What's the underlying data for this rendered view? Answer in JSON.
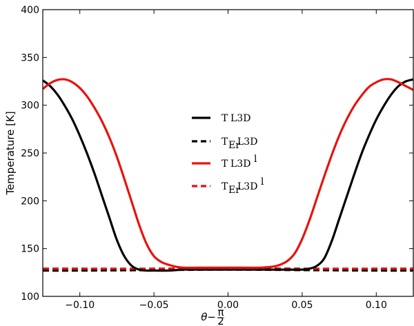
{
  "chart_data": {
    "type": "line",
    "title": "",
    "xlabel": "θ−π/2",
    "xlabel_parts": {
      "main": "θ−",
      "num": "π",
      "den": "2"
    },
    "ylabel": "Temperature [K]",
    "xlim": [
      -0.125,
      0.125
    ],
    "ylim": [
      100,
      400
    ],
    "xticks": [
      -0.1,
      -0.05,
      0.0,
      0.05,
      0.1
    ],
    "xtick_labels": [
      "−0.10",
      "−0.05",
      "0.00",
      "0.05",
      "0.10"
    ],
    "yticks": [
      100,
      150,
      200,
      250,
      300,
      350,
      400
    ],
    "ytick_labels": [
      "100",
      "150",
      "200",
      "250",
      "300",
      "350",
      "400"
    ],
    "grid": false,
    "legend_position": "center",
    "series": [
      {
        "name": "T L3D",
        "label_main": "T",
        "label_sub": "",
        "label_suffix": "L3D",
        "label_sup": "",
        "color": "#000000",
        "style": "solid",
        "x": [
          -0.125,
          -0.12,
          -0.115,
          -0.11,
          -0.105,
          -0.1,
          -0.095,
          -0.09,
          -0.085,
          -0.08,
          -0.075,
          -0.07,
          -0.065,
          -0.06,
          -0.055,
          -0.05,
          -0.04,
          -0.03,
          -0.02,
          0.0,
          0.02,
          0.03,
          0.04,
          0.05,
          0.055,
          0.06,
          0.065,
          0.07,
          0.075,
          0.08,
          0.085,
          0.09,
          0.095,
          0.1,
          0.105,
          0.11,
          0.115,
          0.12,
          0.125
        ],
        "y": [
          326,
          320,
          311,
          299,
          285,
          268,
          249,
          228,
          205,
          182,
          159,
          142,
          132,
          128,
          127,
          127,
          127,
          128,
          128,
          128,
          128,
          128,
          128,
          128,
          129,
          132,
          140,
          158,
          181,
          204,
          227,
          249,
          268,
          285,
          299,
          311,
          320,
          325,
          327
        ]
      },
      {
        "name": "T_Er L3D",
        "label_main": "T",
        "label_sub": "Er",
        "label_suffix": "L3D",
        "label_sup": "",
        "color": "#000000",
        "style": "dashed",
        "x": [
          -0.125,
          -0.1,
          -0.05,
          0.0,
          0.05,
          0.1,
          0.125
        ],
        "y": [
          127,
          127,
          127.5,
          128,
          127.5,
          127,
          127
        ]
      },
      {
        "name": "T L3D^l",
        "label_main": "T",
        "label_sub": "",
        "label_suffix": "L3D",
        "label_sup": "l",
        "color": "#e8120c",
        "style": "solid",
        "x": [
          -0.125,
          -0.12,
          -0.115,
          -0.11,
          -0.105,
          -0.1,
          -0.095,
          -0.09,
          -0.085,
          -0.08,
          -0.075,
          -0.07,
          -0.065,
          -0.06,
          -0.055,
          -0.05,
          -0.045,
          -0.04,
          -0.035,
          -0.03,
          -0.02,
          -0.01,
          0.0,
          0.01,
          0.02,
          0.03,
          0.035,
          0.04,
          0.045,
          0.05,
          0.055,
          0.06,
          0.065,
          0.07,
          0.075,
          0.08,
          0.085,
          0.09,
          0.095,
          0.1,
          0.105,
          0.11,
          0.115,
          0.12,
          0.125
        ],
        "y": [
          317,
          323,
          326.5,
          327,
          324,
          318,
          309,
          297,
          283,
          266,
          246,
          223,
          199,
          175,
          155,
          142,
          136,
          133,
          131,
          130,
          130,
          130,
          130,
          130,
          130,
          131,
          133,
          137,
          145,
          160,
          180,
          203,
          226,
          248,
          268,
          285,
          299,
          310,
          319,
          324,
          327,
          327,
          324,
          320,
          316
        ]
      },
      {
        "name": "T_Er L3D^l",
        "label_main": "T",
        "label_sub": "Er",
        "label_suffix": "L3D",
        "label_sup": "l",
        "color": "#e8120c",
        "style": "dashed",
        "x": [
          -0.125,
          -0.1,
          -0.05,
          0.0,
          0.05,
          0.1,
          0.125
        ],
        "y": [
          129,
          129,
          129,
          129.5,
          129,
          129,
          129
        ]
      }
    ]
  }
}
